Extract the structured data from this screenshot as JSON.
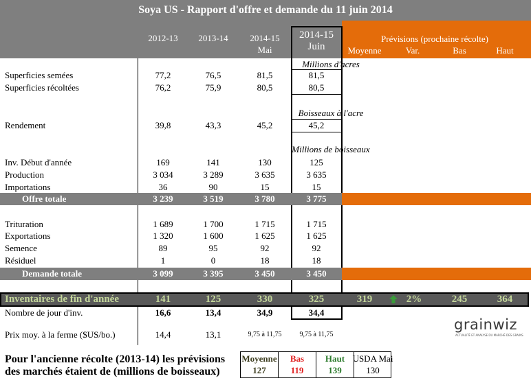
{
  "title": "Soya US - Rapport d'offre et demande du 11 juin 2014",
  "columns": [
    [
      "2012-13"
    ],
    [
      "2013-14"
    ],
    [
      "2014-15",
      "Mai"
    ],
    [
      "2014-15",
      "Juin"
    ]
  ],
  "forecast": {
    "title": "Prévisions (prochaine récolte)",
    "columns": [
      "Moyenne",
      "Var.",
      "Bas",
      "Haut"
    ]
  },
  "units": [
    "Millions d'acres",
    "Boisseaux à l'acre",
    "Millions de boisseaux"
  ],
  "rows": [
    {
      "label": "Superficies semées",
      "values": [
        "77,2",
        "76,5",
        "81,5",
        "81,5"
      ]
    },
    {
      "label": "Superficies récoltées",
      "values": [
        "76,2",
        "75,9",
        "80,5",
        "80,5"
      ]
    },
    {
      "label": "Rendement",
      "values": [
        "39,8",
        "43,3",
        "45,2",
        "45,2"
      ]
    },
    {
      "label": "Inv. Début d'année",
      "values": [
        "169",
        "141",
        "130",
        "125"
      ]
    },
    {
      "label": "Production",
      "values": [
        "3 034",
        "3 289",
        "3 635",
        "3 635"
      ]
    },
    {
      "label": "Importations",
      "values": [
        "36",
        "90",
        "15",
        "15"
      ]
    },
    {
      "label": "Offre totale",
      "values": [
        "3 239",
        "3 519",
        "3 780",
        "3 775"
      ]
    },
    {
      "label": "Trituration",
      "values": [
        "1 689",
        "1 700",
        "1 715",
        "1 715"
      ]
    },
    {
      "label": "Exportations",
      "values": [
        "1 320",
        "1 600",
        "1 625",
        "1 625"
      ]
    },
    {
      "label": "Semence",
      "values": [
        "89",
        "95",
        "92",
        "92"
      ]
    },
    {
      "label": "Résiduel",
      "values": [
        "1",
        "0",
        "18",
        "18"
      ]
    },
    {
      "label": "Demande totale",
      "values": [
        "3 099",
        "3 395",
        "3 450",
        "3 450"
      ]
    },
    {
      "label": "Inventaires de fin d'année",
      "values": [
        "141",
        "125",
        "330",
        "325"
      ],
      "forecast": [
        "319",
        "2%",
        "245",
        "364"
      ]
    },
    {
      "label": "Nombre de jour d'inv.",
      "values": [
        "16,6",
        "13,4",
        "34,9",
        "34,4"
      ]
    },
    {
      "label": "Prix moy. à la ferme ($US/bo.)",
      "values": [
        "14,4",
        "13,1",
        "9,75 à 11,75",
        "9,75 à 11,75"
      ]
    }
  ],
  "logo": {
    "name": "grainwiz",
    "tagline": "ACTUALITÉ ET ANALYSE DU MARCHÉ DES GRAINS"
  },
  "note": [
    "Pour l'ancienne récolte (2013-14) les prévisions",
    "des marchés étaient de (millions de boisseaux)"
  ],
  "old_crop": [
    {
      "label": "Moyenne",
      "value": "127"
    },
    {
      "label": "Bas",
      "value": "119"
    },
    {
      "label": "Haut",
      "value": "139"
    },
    {
      "label": "USDA Mai",
      "value": "130"
    }
  ]
}
